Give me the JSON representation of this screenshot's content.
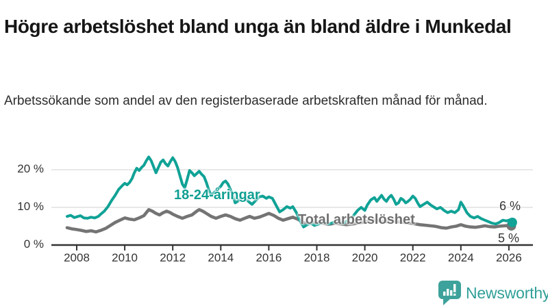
{
  "header": {
    "title": "Högre arbetslöshet bland unga än bland äldre i Munkedal",
    "subtitle": "Arbetssökande som andel av den registerbaserade arbetskraften månad för månad."
  },
  "footer": {
    "brand": "Newsworthy"
  },
  "colors": {
    "accent_teal": "#10a296",
    "label_teal": "#0f9f93",
    "series_gray": "#747474",
    "label_gray": "#6f6f6f",
    "grid": "#d9d9d9",
    "axis": "#333333",
    "text_dark": "#161616",
    "logo_teal": "#3da29b",
    "logo_text_teal": "#2f9f98"
  },
  "chart_data": {
    "type": "line",
    "title": "Högre arbetslöshet bland unga än bland äldre i Munkedal",
    "subtitle": "Arbetssökande som andel av den registerbaserade arbetskraften månad för månad.",
    "xlabel": "",
    "ylabel": "",
    "unit": "%",
    "grid": "horizontal",
    "legend_position": "inline-labels",
    "xlim": [
      2007.5,
      2026.6
    ],
    "ylim": [
      0,
      27
    ],
    "x_ticks": [
      2008,
      2010,
      2012,
      2014,
      2016,
      2018,
      2020,
      2022,
      2024,
      2026
    ],
    "y_ticks": [
      {
        "value": 0,
        "label": "0 %"
      },
      {
        "value": 10,
        "label": "10 %"
      },
      {
        "value": 20,
        "label": "20 %"
      }
    ],
    "series": [
      {
        "name": "18-24-åringar",
        "color": "#10a296",
        "end_label": "6 %",
        "end_value": 6,
        "points": [
          [
            2007.6,
            7.6
          ],
          [
            2007.75,
            7.9
          ],
          [
            2007.9,
            7.3
          ],
          [
            2008.0,
            7.5
          ],
          [
            2008.15,
            7.8
          ],
          [
            2008.3,
            7.2
          ],
          [
            2008.45,
            7.1
          ],
          [
            2008.6,
            7.4
          ],
          [
            2008.75,
            7.2
          ],
          [
            2008.9,
            7.6
          ],
          [
            2009.0,
            8.2
          ],
          [
            2009.15,
            9.0
          ],
          [
            2009.3,
            10.2
          ],
          [
            2009.45,
            11.8
          ],
          [
            2009.6,
            13.2
          ],
          [
            2009.75,
            14.8
          ],
          [
            2009.9,
            15.8
          ],
          [
            2010.0,
            16.4
          ],
          [
            2010.1,
            16.0
          ],
          [
            2010.2,
            16.6
          ],
          [
            2010.3,
            17.6
          ],
          [
            2010.4,
            19.2
          ],
          [
            2010.5,
            20.4
          ],
          [
            2010.6,
            19.8
          ],
          [
            2010.7,
            20.6
          ],
          [
            2010.8,
            21.2
          ],
          [
            2010.9,
            22.4
          ],
          [
            2011.0,
            23.4
          ],
          [
            2011.1,
            22.4
          ],
          [
            2011.2,
            20.8
          ],
          [
            2011.3,
            19.2
          ],
          [
            2011.4,
            20.6
          ],
          [
            2011.5,
            22.0
          ],
          [
            2011.6,
            22.6
          ],
          [
            2011.7,
            21.6
          ],
          [
            2011.8,
            21.0
          ],
          [
            2011.9,
            22.2
          ],
          [
            2012.0,
            23.2
          ],
          [
            2012.1,
            22.2
          ],
          [
            2012.2,
            20.6
          ],
          [
            2012.3,
            18.4
          ],
          [
            2012.4,
            16.2
          ],
          [
            2012.5,
            15.2
          ],
          [
            2012.6,
            17.4
          ],
          [
            2012.7,
            19.8
          ],
          [
            2012.8,
            19.2
          ],
          [
            2012.9,
            18.4
          ],
          [
            2013.0,
            19.0
          ],
          [
            2013.1,
            19.6
          ],
          [
            2013.2,
            18.8
          ],
          [
            2013.3,
            18.2
          ],
          [
            2013.4,
            16.6
          ],
          [
            2013.5,
            14.6
          ],
          [
            2013.6,
            13.2
          ],
          [
            2013.7,
            13.8
          ],
          [
            2013.8,
            14.4
          ],
          [
            2013.9,
            15.0
          ],
          [
            2014.0,
            15.6
          ],
          [
            2014.1,
            16.6
          ],
          [
            2014.2,
            17.0
          ],
          [
            2014.3,
            16.2
          ],
          [
            2014.4,
            14.8
          ],
          [
            2014.5,
            13.2
          ],
          [
            2014.6,
            11.2
          ],
          [
            2014.7,
            11.6
          ],
          [
            2014.8,
            12.2
          ],
          [
            2014.9,
            12.6
          ],
          [
            2015.0,
            12.4
          ],
          [
            2015.15,
            11.6
          ],
          [
            2015.3,
            10.8
          ],
          [
            2015.45,
            11.8
          ],
          [
            2015.6,
            12.8
          ],
          [
            2015.75,
            13.0
          ],
          [
            2015.9,
            12.4
          ],
          [
            2016.0,
            12.8
          ],
          [
            2016.15,
            12.4
          ],
          [
            2016.3,
            10.6
          ],
          [
            2016.45,
            8.8
          ],
          [
            2016.6,
            9.4
          ],
          [
            2016.75,
            10.2
          ],
          [
            2016.9,
            9.8
          ],
          [
            2017.0,
            10.2
          ],
          [
            2017.15,
            8.6
          ],
          [
            2017.3,
            6.4
          ],
          [
            2017.45,
            4.8
          ],
          [
            2017.6,
            5.4
          ],
          [
            2017.75,
            5.8
          ],
          [
            2017.9,
            5.2
          ],
          [
            2018.1,
            5.6
          ],
          [
            2018.3,
            6.2
          ],
          [
            2018.5,
            5.6
          ],
          [
            2018.7,
            6.0
          ],
          [
            2018.9,
            6.4
          ],
          [
            2019.1,
            5.8
          ],
          [
            2019.3,
            6.6
          ],
          [
            2019.5,
            7.6
          ],
          [
            2019.7,
            9.2
          ],
          [
            2019.85,
            10.0
          ],
          [
            2020.0,
            9.2
          ],
          [
            2020.1,
            10.6
          ],
          [
            2020.25,
            12.0
          ],
          [
            2020.4,
            12.6
          ],
          [
            2020.5,
            11.6
          ],
          [
            2020.6,
            12.4
          ],
          [
            2020.7,
            13.2
          ],
          [
            2020.8,
            12.2
          ],
          [
            2020.9,
            11.6
          ],
          [
            2021.0,
            12.6
          ],
          [
            2021.1,
            13.2
          ],
          [
            2021.2,
            12.2
          ],
          [
            2021.3,
            10.8
          ],
          [
            2021.4,
            11.2
          ],
          [
            2021.5,
            12.4
          ],
          [
            2021.6,
            12.0
          ],
          [
            2021.7,
            11.2
          ],
          [
            2021.8,
            11.6
          ],
          [
            2021.9,
            12.2
          ],
          [
            2022.0,
            13.0
          ],
          [
            2022.1,
            12.4
          ],
          [
            2022.2,
            11.2
          ],
          [
            2022.3,
            10.2
          ],
          [
            2022.45,
            10.8
          ],
          [
            2022.6,
            11.4
          ],
          [
            2022.75,
            10.6
          ],
          [
            2022.9,
            10.0
          ],
          [
            2023.0,
            9.6
          ],
          [
            2023.15,
            10.0
          ],
          [
            2023.3,
            9.2
          ],
          [
            2023.45,
            8.6
          ],
          [
            2023.6,
            9.0
          ],
          [
            2023.75,
            8.6
          ],
          [
            2023.9,
            9.4
          ],
          [
            2024.0,
            11.4
          ],
          [
            2024.1,
            10.4
          ],
          [
            2024.25,
            8.6
          ],
          [
            2024.4,
            7.6
          ],
          [
            2024.55,
            7.2
          ],
          [
            2024.7,
            7.6
          ],
          [
            2024.85,
            7.0
          ],
          [
            2025.0,
            6.6
          ],
          [
            2025.15,
            6.2
          ],
          [
            2025.3,
            5.8
          ],
          [
            2025.45,
            5.6
          ],
          [
            2025.6,
            6.0
          ],
          [
            2025.75,
            6.6
          ],
          [
            2025.9,
            6.4
          ],
          [
            2026.0,
            6.6
          ],
          [
            2026.1,
            6.0
          ]
        ]
      },
      {
        "name": "Total arbetslöshet",
        "color": "#747474",
        "end_label": "5 %",
        "end_value": 5,
        "points": [
          [
            2007.6,
            4.6
          ],
          [
            2007.8,
            4.3
          ],
          [
            2008.0,
            4.1
          ],
          [
            2008.2,
            3.9
          ],
          [
            2008.4,
            3.6
          ],
          [
            2008.6,
            3.8
          ],
          [
            2008.8,
            3.5
          ],
          [
            2009.0,
            3.9
          ],
          [
            2009.2,
            4.4
          ],
          [
            2009.4,
            5.2
          ],
          [
            2009.6,
            6.0
          ],
          [
            2009.8,
            6.6
          ],
          [
            2010.0,
            7.2
          ],
          [
            2010.2,
            6.9
          ],
          [
            2010.4,
            6.7
          ],
          [
            2010.6,
            7.2
          ],
          [
            2010.8,
            7.8
          ],
          [
            2011.0,
            9.4
          ],
          [
            2011.15,
            9.0
          ],
          [
            2011.3,
            8.4
          ],
          [
            2011.45,
            8.0
          ],
          [
            2011.6,
            8.6
          ],
          [
            2011.75,
            9.0
          ],
          [
            2011.9,
            8.6
          ],
          [
            2012.0,
            8.2
          ],
          [
            2012.2,
            7.6
          ],
          [
            2012.4,
            7.1
          ],
          [
            2012.6,
            7.6
          ],
          [
            2012.8,
            8.0
          ],
          [
            2013.0,
            9.0
          ],
          [
            2013.1,
            9.4
          ],
          [
            2013.25,
            9.0
          ],
          [
            2013.4,
            8.4
          ],
          [
            2013.6,
            7.6
          ],
          [
            2013.8,
            7.1
          ],
          [
            2014.0,
            7.6
          ],
          [
            2014.2,
            8.0
          ],
          [
            2014.4,
            7.6
          ],
          [
            2014.6,
            7.0
          ],
          [
            2014.8,
            6.6
          ],
          [
            2015.0,
            7.1
          ],
          [
            2015.2,
            7.6
          ],
          [
            2015.4,
            7.1
          ],
          [
            2015.6,
            7.4
          ],
          [
            2015.8,
            7.9
          ],
          [
            2016.0,
            8.4
          ],
          [
            2016.2,
            7.9
          ],
          [
            2016.4,
            7.1
          ],
          [
            2016.6,
            6.6
          ],
          [
            2016.8,
            7.0
          ],
          [
            2017.0,
            7.4
          ],
          [
            2017.2,
            6.9
          ],
          [
            2017.4,
            6.1
          ],
          [
            2017.6,
            5.6
          ],
          [
            2017.8,
            5.9
          ],
          [
            2018.0,
            6.1
          ],
          [
            2018.25,
            5.8
          ],
          [
            2018.5,
            5.5
          ],
          [
            2018.75,
            5.8
          ],
          [
            2019.0,
            5.6
          ],
          [
            2019.25,
            5.4
          ],
          [
            2019.5,
            5.6
          ],
          [
            2019.75,
            5.9
          ],
          [
            2020.0,
            6.1
          ],
          [
            2020.3,
            6.6
          ],
          [
            2020.6,
            6.4
          ],
          [
            2020.9,
            6.2
          ],
          [
            2021.2,
            6.4
          ],
          [
            2021.5,
            6.1
          ],
          [
            2021.8,
            5.9
          ],
          [
            2022.0,
            5.7
          ],
          [
            2022.3,
            5.4
          ],
          [
            2022.6,
            5.2
          ],
          [
            2022.9,
            5.0
          ],
          [
            2023.0,
            4.9
          ],
          [
            2023.2,
            4.6
          ],
          [
            2023.4,
            4.5
          ],
          [
            2023.6,
            4.8
          ],
          [
            2023.8,
            5.0
          ],
          [
            2024.0,
            5.4
          ],
          [
            2024.2,
            5.0
          ],
          [
            2024.4,
            4.8
          ],
          [
            2024.6,
            4.7
          ],
          [
            2024.8,
            4.9
          ],
          [
            2025.0,
            5.1
          ],
          [
            2025.2,
            4.9
          ],
          [
            2025.4,
            4.8
          ],
          [
            2025.6,
            5.0
          ],
          [
            2025.8,
            5.1
          ],
          [
            2026.0,
            5.2
          ],
          [
            2026.1,
            5.1
          ]
        ]
      }
    ]
  }
}
